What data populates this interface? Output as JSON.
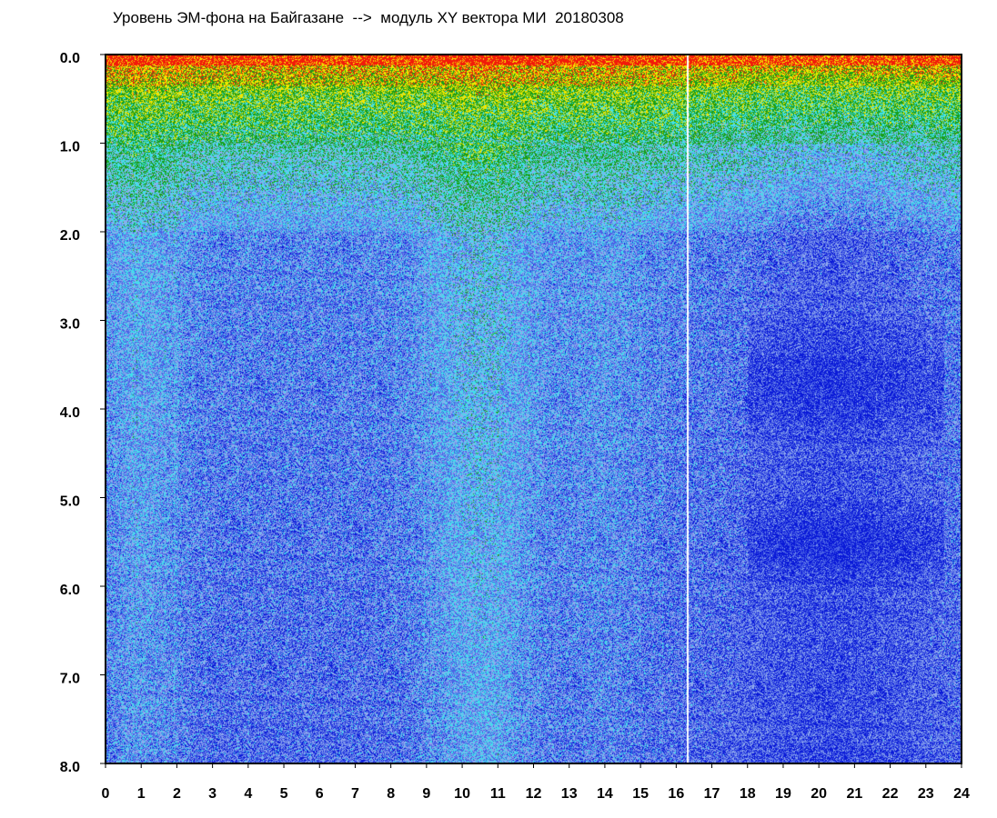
{
  "chart_data": {
    "type": "heatmap",
    "title": "Уровень ЭМ-фона на Байгазане  -->  модуль XY вектора МИ  20180308",
    "xlabel": "",
    "ylabel": "",
    "x_ticks": [
      "0",
      "1",
      "2",
      "3",
      "4",
      "5",
      "6",
      "7",
      "8",
      "9",
      "10",
      "11",
      "12",
      "13",
      "14",
      "15",
      "16",
      "17",
      "18",
      "19",
      "20",
      "21",
      "22",
      "23",
      "24"
    ],
    "y_ticks": [
      "0.0",
      "1.0",
      "2.0",
      "3.0",
      "4.0",
      "5.0",
      "6.0",
      "7.0",
      "8.0"
    ],
    "xlim": [
      0,
      24
    ],
    "ylim": [
      0,
      8
    ],
    "y_axis_inverted": true,
    "colormap": [
      "#0a1ad8",
      "#4a63e6",
      "#8fa9ee",
      "#3fe0ec",
      "#1a9e1a",
      "#f2e600",
      "#f21a0a"
    ],
    "data_gap_time": 16.3,
    "bands": [
      {
        "y_range": [
          0.0,
          0.3
        ],
        "level": "red-yellow"
      },
      {
        "y_range": [
          0.3,
          1.0
        ],
        "level": "yellow-green"
      },
      {
        "y_range": [
          1.0,
          2.0
        ],
        "level": "cyan"
      },
      {
        "y_range": [
          2.0,
          8.0
        ],
        "level": "blue"
      }
    ],
    "grid": false
  }
}
